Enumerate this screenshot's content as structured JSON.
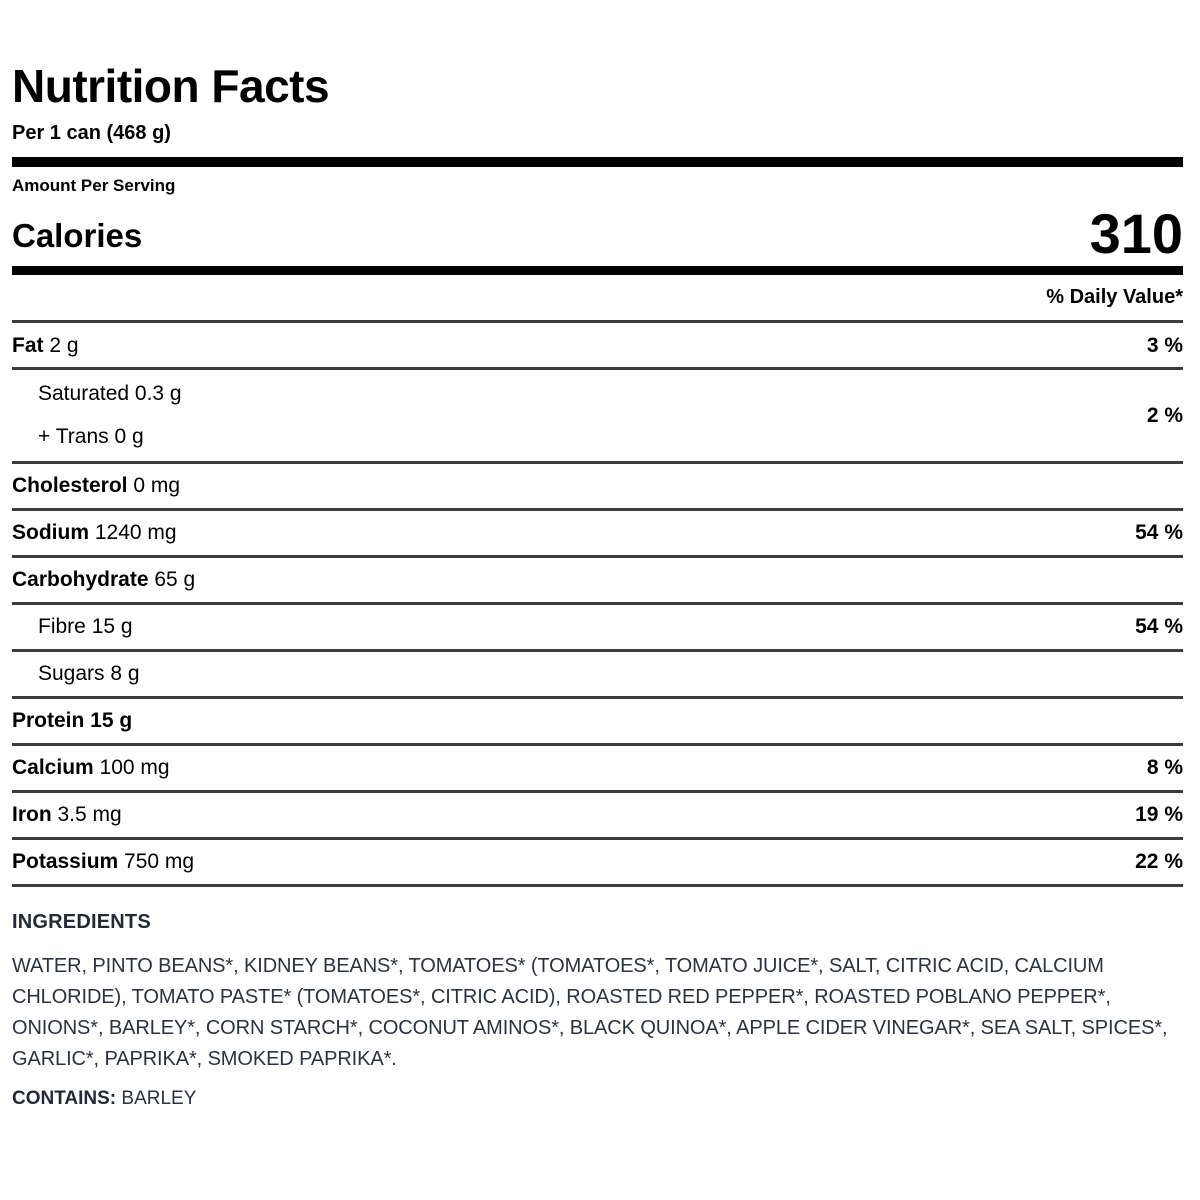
{
  "colors": {
    "table_text": "#000000",
    "divider": "#3c3c3c",
    "ingredients_text": "#2b3240"
  },
  "label": {
    "title": "Nutrition Facts",
    "serving": "Per 1 can (468 g)",
    "amount_per_serving": "Amount Per Serving",
    "calories_label": "Calories",
    "calories_value": "310",
    "daily_value_header": "% Daily Value*",
    "rows": [
      {
        "name": "Fat",
        "amount": "2 g",
        "dv": "3 %",
        "indent": false,
        "bold_amount": false
      },
      {
        "lines": [
          "Saturated 0.3 g",
          "+ Trans 0 g"
        ],
        "dv": "2 %",
        "indent": true,
        "two_line": true
      },
      {
        "name": "Cholesterol",
        "amount": "0 mg",
        "dv": "",
        "indent": false,
        "bold_amount": false
      },
      {
        "name": "Sodium",
        "amount": "1240 mg",
        "dv": "54 %",
        "indent": false,
        "bold_amount": false
      },
      {
        "name": "Carbohydrate",
        "amount": "65 g",
        "dv": "",
        "indent": false,
        "bold_amount": false
      },
      {
        "name": "Fibre",
        "amount": "15 g",
        "dv": "54 %",
        "indent": true,
        "bold_amount": false,
        "plain_name": true
      },
      {
        "name": "Sugars",
        "amount": "8 g",
        "dv": "",
        "indent": true,
        "bold_amount": false,
        "plain_name": true
      },
      {
        "name": "Protein",
        "amount": "15 g",
        "dv": "",
        "indent": false,
        "bold_amount": true
      },
      {
        "name": "Calcium",
        "amount": "100 mg",
        "dv": "8 %",
        "indent": false,
        "bold_amount": false
      },
      {
        "name": "Iron",
        "amount": "3.5 mg",
        "dv": "19 %",
        "indent": false,
        "bold_amount": false
      },
      {
        "name": "Potassium",
        "amount": "750 mg",
        "dv": "22 %",
        "indent": false,
        "bold_amount": false
      }
    ],
    "ingredients_heading": "INGREDIENTS",
    "ingredients_text": "WATER, PINTO BEANS*, KIDNEY BEANS*, TOMATOES* (TOMATOES*, TOMATO JUICE*, SALT, CITRIC ACID, CALCIUM CHLORIDE), TOMATO PASTE* (TOMATOES*, CITRIC ACID), ROASTED RED PEPPER*, ROASTED POBLANO PEPPER*, ONIONS*, BARLEY*, CORN STARCH*, COCONUT AMINOS*, BLACK QUINOA*, APPLE CIDER VINEGAR*, SEA SALT, SPICES*, GARLIC*, PAPRIKA*, SMOKED PAPRIKA*.",
    "contains_label": "CONTAINS:",
    "contains_value": "BARLEY"
  }
}
